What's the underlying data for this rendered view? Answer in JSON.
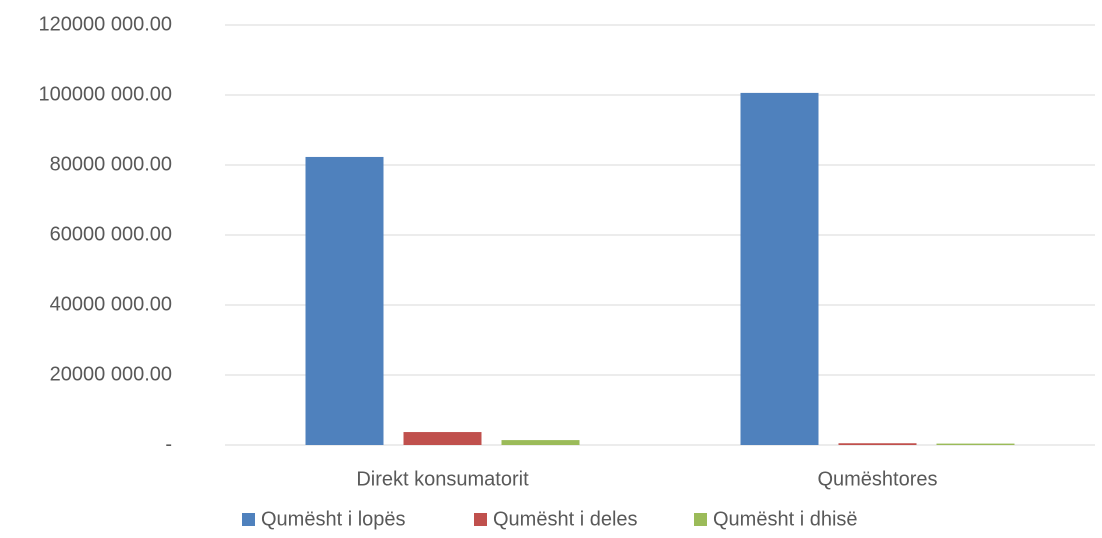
{
  "chart_data": {
    "type": "bar",
    "categories": [
      "Direkt  konsumatorit",
      "Qumështores"
    ],
    "series": [
      {
        "name": "Qumësht i lopës",
        "color": "#4f81bd",
        "values": [
          82300000,
          100600000
        ]
      },
      {
        "name": "Qumësht i deles",
        "color": "#c0504d",
        "values": [
          3700000,
          500000
        ]
      },
      {
        "name": "Qumësht i dhisë",
        "color": "#9bbb59",
        "values": [
          1400000,
          400000
        ]
      }
    ],
    "ylim": [
      0,
      120000000
    ],
    "yticks": [
      {
        "value": 0,
        "label": "-"
      },
      {
        "value": 20000000,
        "label": "20000 000.00"
      },
      {
        "value": 40000000,
        "label": "40000 000.00"
      },
      {
        "value": 60000000,
        "label": "60000 000.00"
      },
      {
        "value": 80000000,
        "label": "80000 000.00"
      },
      {
        "value": 100000000,
        "label": "100000 000.00"
      },
      {
        "value": 120000000,
        "label": "120000 000.00"
      }
    ],
    "grid": true,
    "legend": "bottom"
  }
}
